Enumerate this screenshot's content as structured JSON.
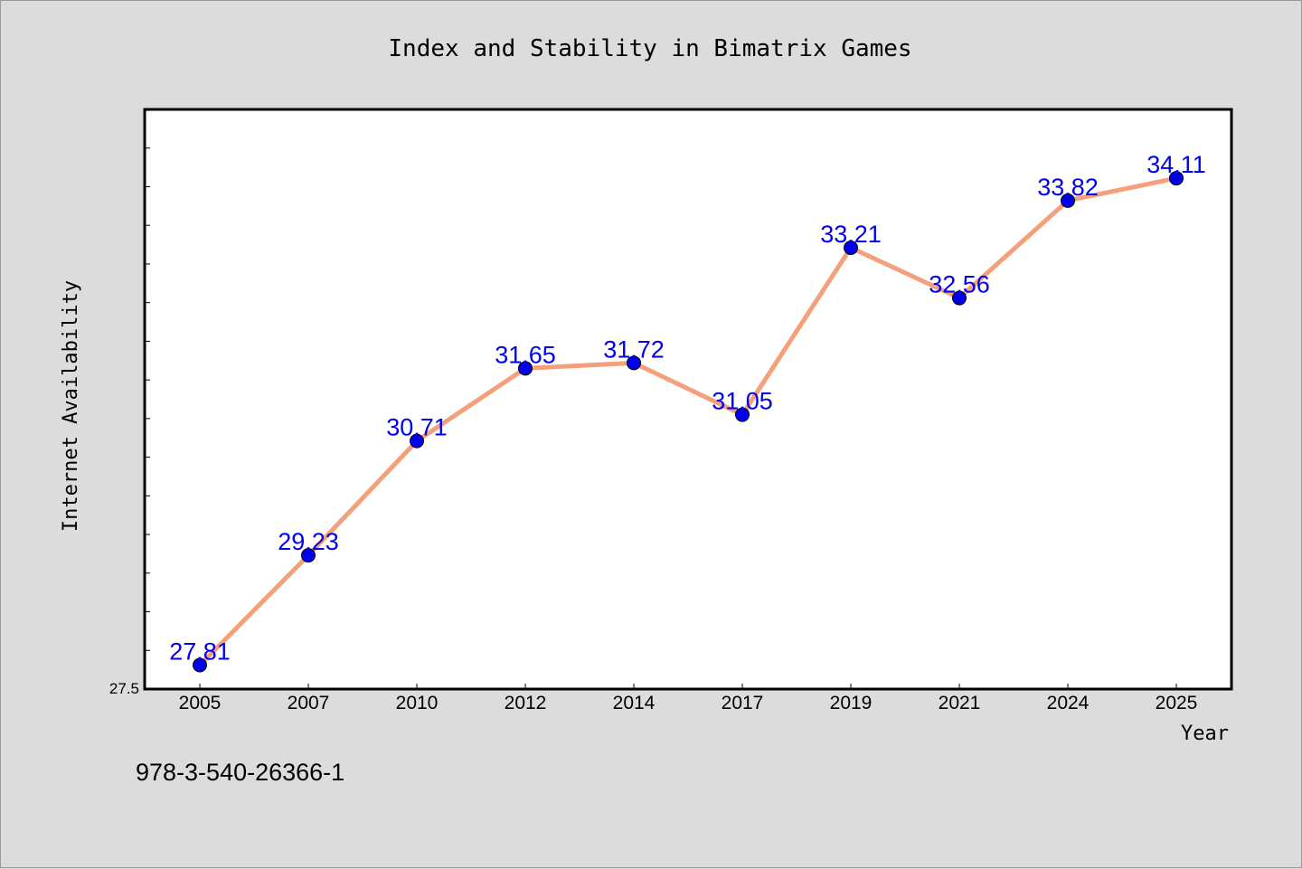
{
  "chart_data": {
    "type": "line",
    "title": "Index and Stability in Bimatrix Games",
    "xlabel": "Year",
    "ylabel": "Internet Availability",
    "categories": [
      "2005",
      "2007",
      "2010",
      "2012",
      "2014",
      "2017",
      "2019",
      "2021",
      "2024",
      "2025"
    ],
    "series": [
      {
        "values": [
          27.81,
          29.23,
          30.71,
          31.65,
          31.72,
          31.05,
          33.21,
          32.56,
          33.82,
          34.11
        ],
        "labels": [
          "27.81",
          "29.23",
          "30.71",
          "31.65",
          "31.72",
          "31.05",
          "33.21",
          "32.56",
          "33.82",
          "34.11"
        ],
        "line_color": "#f4a07a",
        "marker_color": "#0000ee",
        "label_color": "#0000ee"
      }
    ],
    "ylim": [
      27.5,
      35.0
    ],
    "y_tick_labels": [
      "27.5"
    ],
    "grid": false,
    "legend": "none"
  },
  "footer": {
    "isbn": "978-3-540-26366-1"
  }
}
